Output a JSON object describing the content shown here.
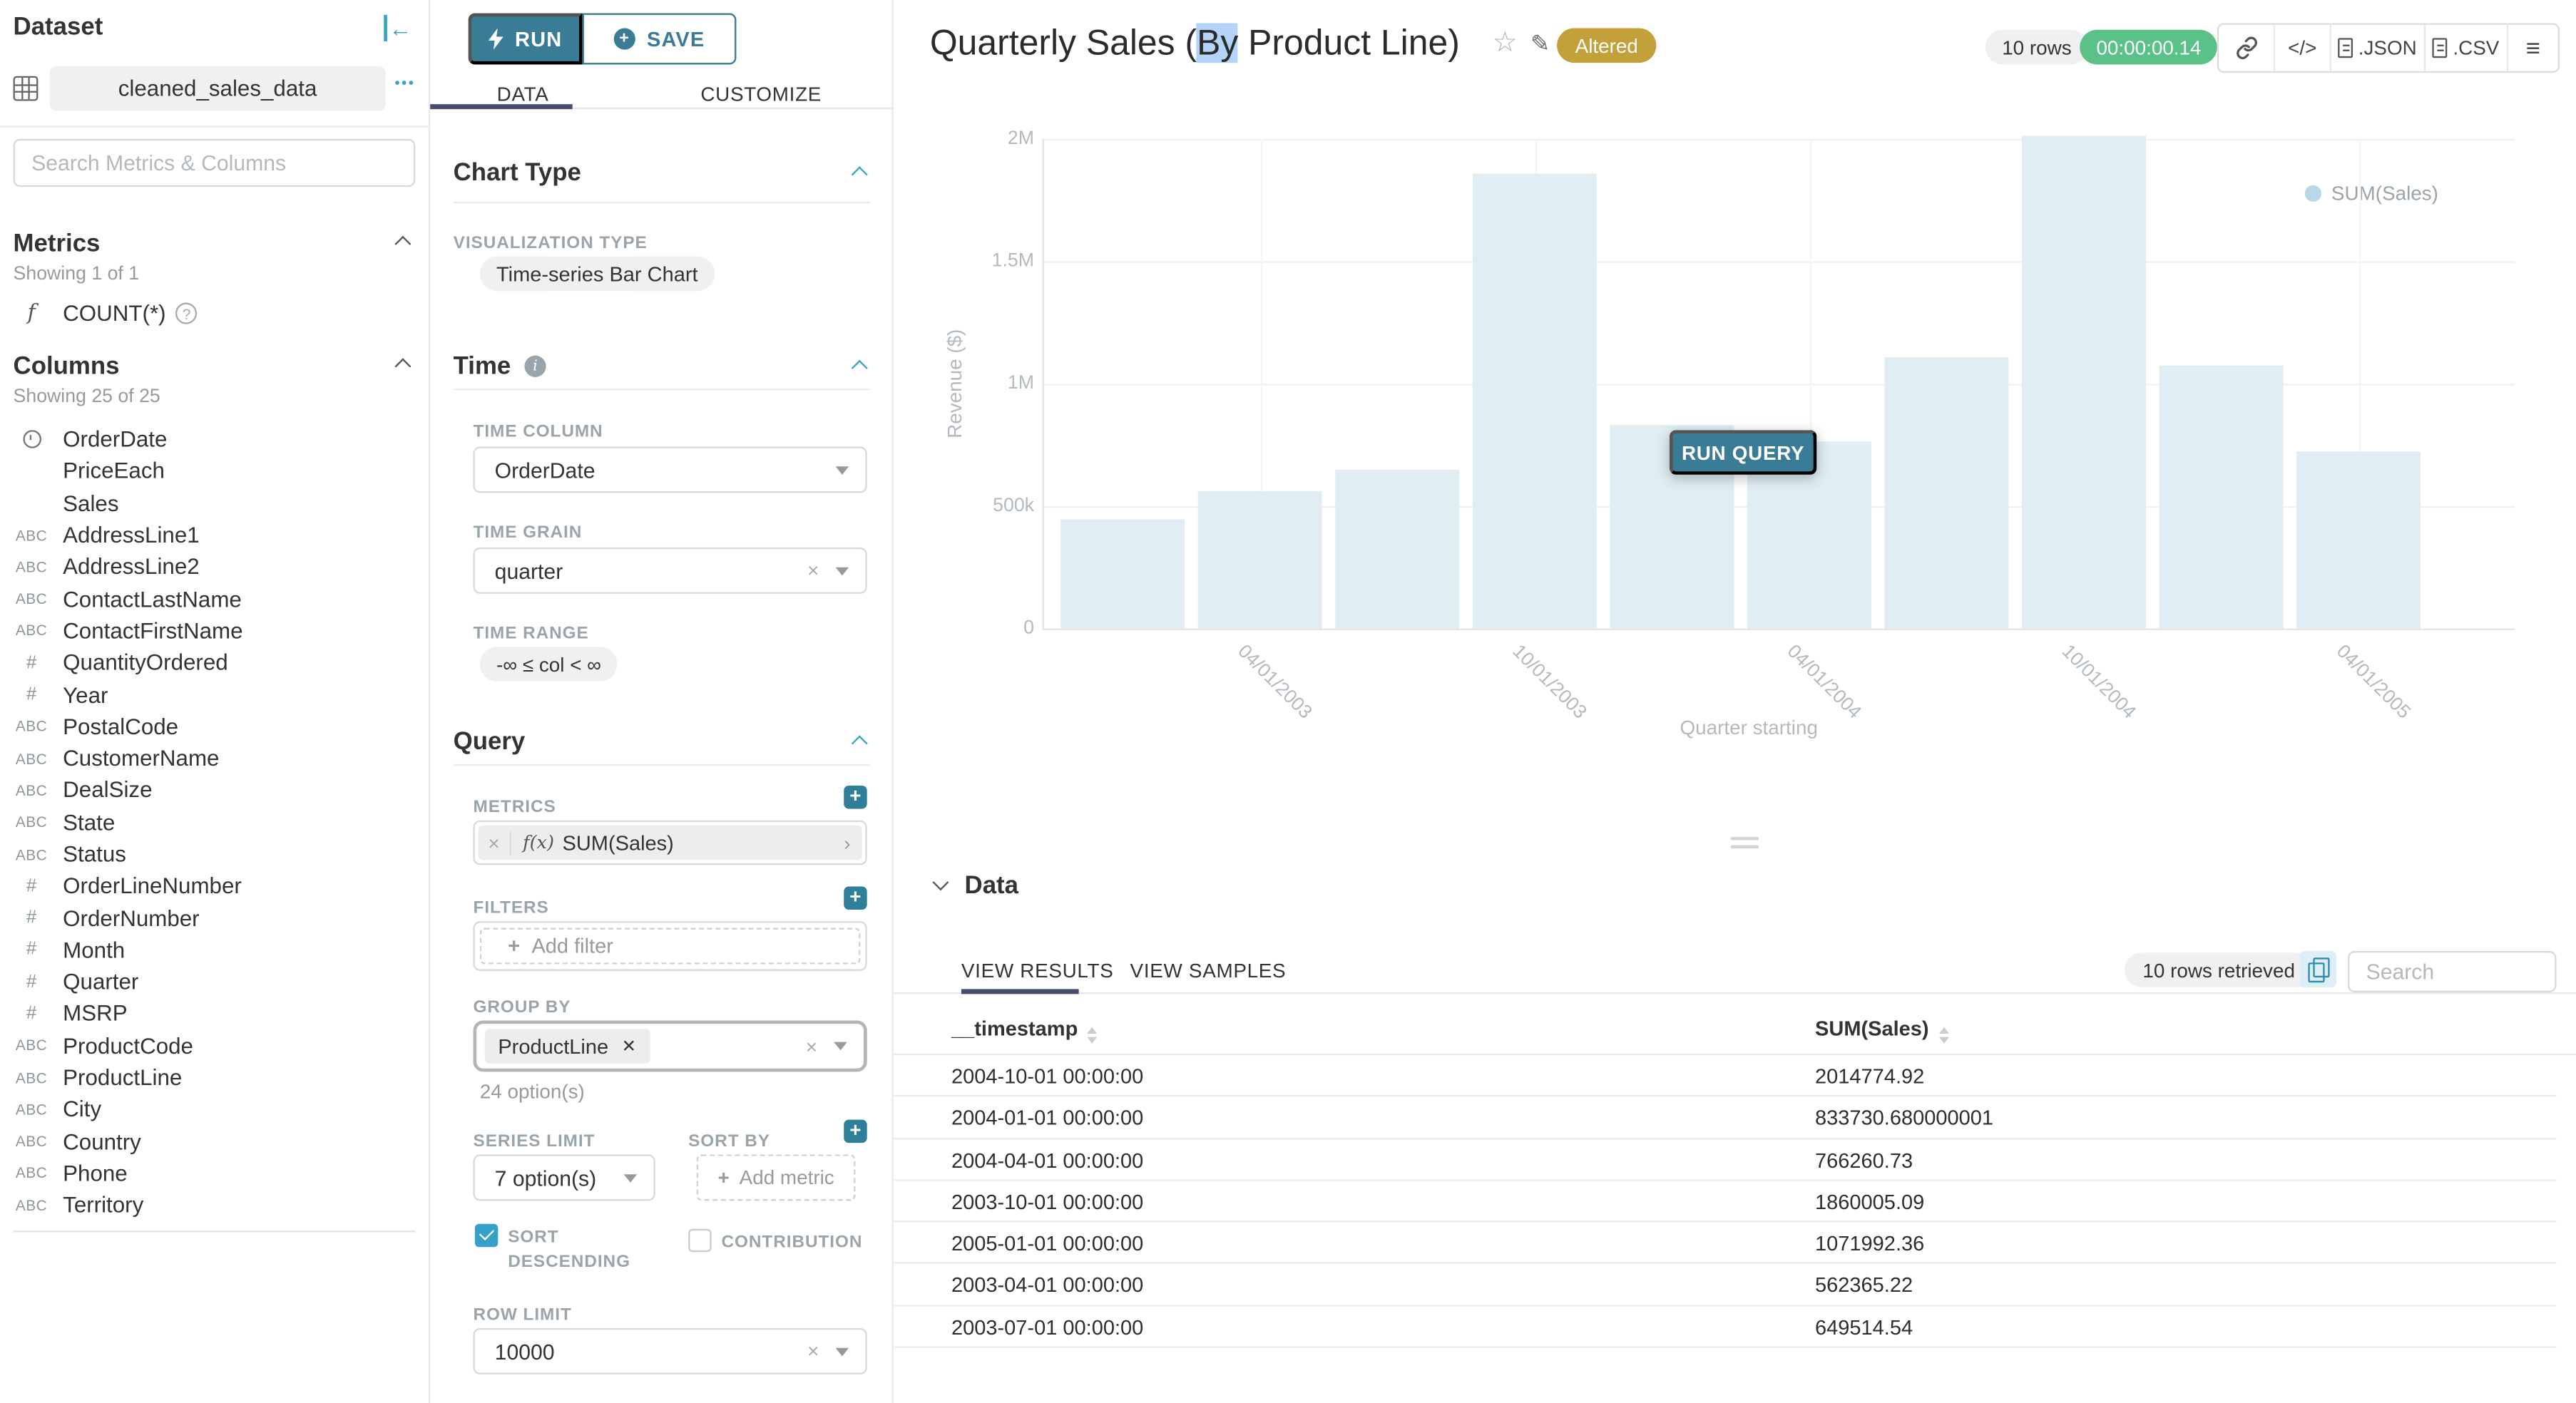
{
  "dataset": {
    "panel_title": "Dataset",
    "name": "cleaned_sales_data",
    "more": "•••",
    "search_placeholder": "Search Metrics & Columns",
    "metrics_heading": "Metrics",
    "metrics_showing": "Showing 1 of 1",
    "metric_items": [
      {
        "icon": "function",
        "label": "COUNT(*)"
      }
    ],
    "columns_heading": "Columns",
    "columns_showing": "Showing 25 of 25",
    "column_items": [
      {
        "icon": "clock",
        "label": "OrderDate"
      },
      {
        "icon": "",
        "label": "PriceEach"
      },
      {
        "icon": "",
        "label": "Sales"
      },
      {
        "icon": "abc",
        "label": "AddressLine1"
      },
      {
        "icon": "abc",
        "label": "AddressLine2"
      },
      {
        "icon": "abc",
        "label": "ContactLastName"
      },
      {
        "icon": "abc",
        "label": "ContactFirstName"
      },
      {
        "icon": "hash",
        "label": "QuantityOrdered"
      },
      {
        "icon": "hash",
        "label": "Year"
      },
      {
        "icon": "abc",
        "label": "PostalCode"
      },
      {
        "icon": "abc",
        "label": "CustomerName"
      },
      {
        "icon": "abc",
        "label": "DealSize"
      },
      {
        "icon": "abc",
        "label": "State"
      },
      {
        "icon": "abc",
        "label": "Status"
      },
      {
        "icon": "hash",
        "label": "OrderLineNumber"
      },
      {
        "icon": "hash",
        "label": "OrderNumber"
      },
      {
        "icon": "hash",
        "label": "Month"
      },
      {
        "icon": "hash",
        "label": "Quarter"
      },
      {
        "icon": "hash",
        "label": "MSRP"
      },
      {
        "icon": "abc",
        "label": "ProductCode"
      },
      {
        "icon": "abc",
        "label": "ProductLine"
      },
      {
        "icon": "abc",
        "label": "City"
      },
      {
        "icon": "abc",
        "label": "Country"
      },
      {
        "icon": "abc",
        "label": "Phone"
      },
      {
        "icon": "abc",
        "label": "Territory"
      }
    ]
  },
  "controls": {
    "run": "RUN",
    "save": "SAVE",
    "tabs": [
      "DATA",
      "CUSTOMIZE"
    ],
    "chart_type_heading": "Chart Type",
    "viz_type_label": "VISUALIZATION TYPE",
    "viz_type": "Time-series Bar Chart",
    "time_heading": "Time",
    "time_column_label": "TIME COLUMN",
    "time_column": "OrderDate",
    "time_grain_label": "TIME GRAIN",
    "time_grain": "quarter",
    "time_range_label": "TIME RANGE",
    "time_range": "-∞ ≤ col < ∞",
    "query_heading": "Query",
    "metrics_label": "METRICS",
    "metric_fn": "f(x)",
    "metric_value": "SUM(Sales)",
    "filters_label": "FILTERS",
    "add_filter": "Add filter",
    "group_by_label": "GROUP BY",
    "group_by_value": "ProductLine",
    "group_by_hint": "24 option(s)",
    "series_limit_label": "SERIES LIMIT",
    "series_limit": "7 option(s)",
    "sort_by_label": "SORT BY",
    "add_metric": "Add metric",
    "sort_descending_label": "SORT DESCENDING",
    "contribution_label": "CONTRIBUTION",
    "row_limit_label": "ROW LIMIT",
    "row_limit": "10000"
  },
  "header": {
    "title_pre": "Quarterly Sales (",
    "title_selected": "By",
    "title_post": " Product Line)",
    "badge": "Altered",
    "rows_pill": "10 rows",
    "timer": "00:00:00.14",
    "code_label": "</>",
    "json_label": ".JSON",
    "csv_label": ".CSV",
    "menu_glyph": "≡"
  },
  "chart": {
    "run_query": "RUN QUERY"
  },
  "chart_data": {
    "type": "bar",
    "title": "Quarterly Sales (By Product Line)",
    "legend": [
      "SUM(Sales)"
    ],
    "legend_position": "top-right",
    "xlabel": "Quarter starting",
    "ylabel": "Revenue ($)",
    "ylim": [
      0,
      2100000
    ],
    "ytick_values": [
      0,
      500000,
      1000000,
      1500000,
      2000000
    ],
    "ytick_labels": [
      "0",
      "500k",
      "1M",
      "1.5M",
      "2M"
    ],
    "x": [
      "2003-01-01",
      "2003-04-01",
      "2003-07-01",
      "2003-10-01",
      "2004-01-01",
      "2004-04-01",
      "2004-07-01",
      "2004-10-01",
      "2005-01-01",
      "2005-04-01"
    ],
    "xtick_labels": [
      "04/01/2003",
      "10/01/2003",
      "04/01/2004",
      "10/01/2004",
      "04/01/2005"
    ],
    "series": [
      {
        "name": "SUM(Sales)",
        "values": [
          445000,
          562365.22,
          649514.54,
          1860005.09,
          833730.68,
          766260.73,
          1110000,
          2014774.92,
          1071992.36,
          720000
        ]
      }
    ],
    "bar_color": "#e0eef4",
    "grid": true
  },
  "data_panel": {
    "heading": "Data",
    "tab_results": "VIEW RESULTS",
    "tab_samples": "VIEW SAMPLES",
    "rows_retrieved": "10 rows retrieved",
    "search_placeholder": "Search",
    "columns": [
      "__timestamp",
      "SUM(Sales)"
    ],
    "rows": [
      [
        "2004-10-01 00:00:00",
        "2014774.92"
      ],
      [
        "2004-01-01 00:00:00",
        "833730.680000001"
      ],
      [
        "2004-04-01 00:00:00",
        "766260.73"
      ],
      [
        "2003-10-01 00:00:00",
        "1860005.09"
      ],
      [
        "2005-01-01 00:00:00",
        "1071992.36"
      ],
      [
        "2003-04-01 00:00:00",
        "562365.22"
      ],
      [
        "2003-07-01 00:00:00",
        "649514.54"
      ]
    ]
  }
}
